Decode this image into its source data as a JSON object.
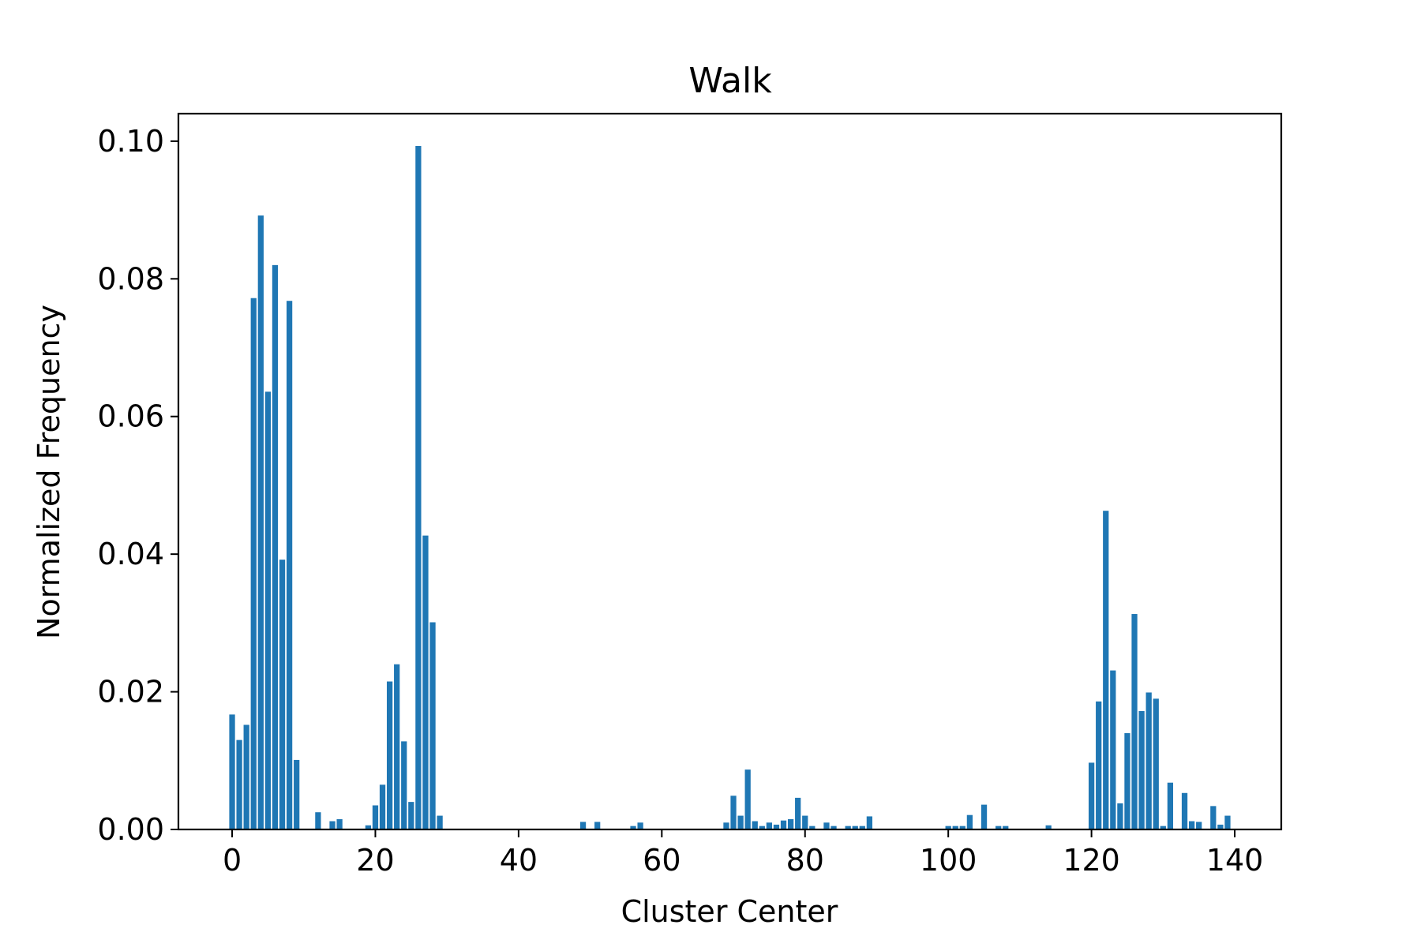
{
  "chart_data": {
    "type": "bar",
    "title": "Walk",
    "xlabel": "Cluster Center",
    "ylabel": "Normalized Frequency",
    "xlim": [
      -7.5,
      146.5
    ],
    "ylim": [
      0,
      0.104
    ],
    "xticks": [
      0,
      20,
      40,
      60,
      80,
      100,
      120,
      140
    ],
    "xtick_labels": [
      "0",
      "20",
      "40",
      "60",
      "80",
      "100",
      "120",
      "140"
    ],
    "yticks": [
      0,
      0.02,
      0.04,
      0.06,
      0.08,
      0.1
    ],
    "ytick_labels": [
      "0.00",
      "0.02",
      "0.04",
      "0.06",
      "0.08",
      "0.10"
    ],
    "bar_color": "#1f77b4",
    "grid": false,
    "x": [
      0,
      1,
      2,
      3,
      4,
      5,
      6,
      7,
      8,
      9,
      12,
      14,
      15,
      19,
      20,
      21,
      22,
      23,
      24,
      25,
      26,
      27,
      28,
      29,
      49,
      51,
      56,
      57,
      69,
      70,
      71,
      72,
      73,
      74,
      75,
      76,
      77,
      78,
      79,
      80,
      81,
      83,
      84,
      86,
      87,
      88,
      89,
      100,
      101,
      102,
      103,
      105,
      107,
      108,
      114,
      120,
      121,
      122,
      123,
      124,
      125,
      126,
      127,
      128,
      129,
      130,
      131,
      133,
      134,
      135,
      137,
      138,
      139
    ],
    "values": [
      0.0167,
      0.013,
      0.0152,
      0.0772,
      0.0892,
      0.0636,
      0.082,
      0.0392,
      0.0768,
      0.0101,
      0.0025,
      0.0012,
      0.0015,
      0.0006,
      0.0035,
      0.0065,
      0.0215,
      0.024,
      0.0128,
      0.004,
      0.0993,
      0.0427,
      0.0301,
      0.002,
      0.0011,
      0.0011,
      0.0005,
      0.001,
      0.001,
      0.0049,
      0.002,
      0.0087,
      0.0012,
      0.0005,
      0.001,
      0.0007,
      0.0013,
      0.0015,
      0.0046,
      0.002,
      0.0005,
      0.001,
      0.0005,
      0.0005,
      0.0005,
      0.0005,
      0.0019,
      0.0005,
      0.0005,
      0.0005,
      0.0021,
      0.0036,
      0.0005,
      0.0005,
      0.0006,
      0.0097,
      0.0186,
      0.0463,
      0.0231,
      0.0038,
      0.014,
      0.0313,
      0.0172,
      0.0199,
      0.019,
      0.0005,
      0.0068,
      0.0053,
      0.0012,
      0.0011,
      0.0034,
      0.0007,
      0.002
    ]
  }
}
